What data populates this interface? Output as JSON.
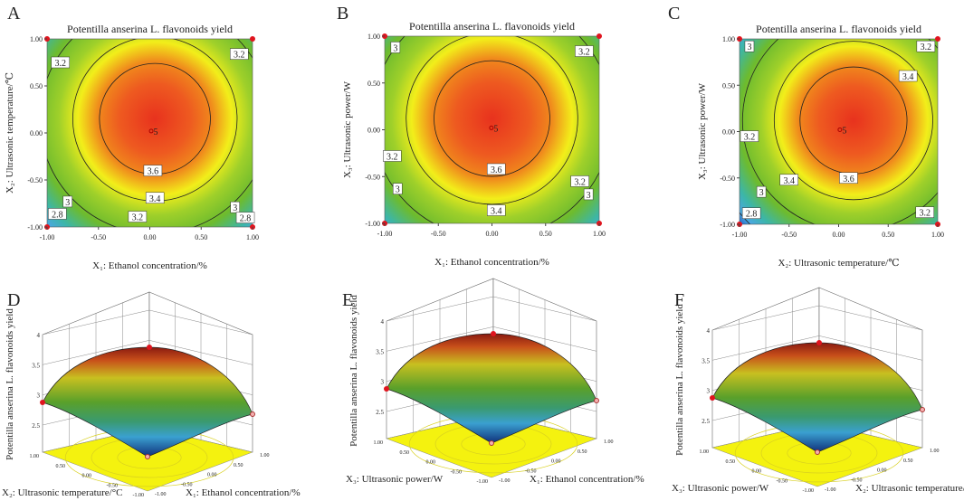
{
  "chart_data": [
    {
      "panel": "A",
      "type": "contour",
      "title": "Potentilla anserina L. flavonoids yield",
      "xlabel": "X₁: Ethanol concentration/%",
      "ylabel": "X₂: Ultrasonic temperature/℃",
      "xticks": [
        "-1.00",
        "-0.50",
        "0.00",
        "0.50",
        "1.00"
      ],
      "yticks": [
        "-1.00",
        "-0.50",
        "0.00",
        "0.50",
        "1.00"
      ],
      "xlim": [
        -1,
        1
      ],
      "ylim": [
        -1,
        1
      ],
      "center": [
        0.05,
        0.15
      ],
      "levels": [
        3.6,
        3.4,
        3.2,
        3,
        2.8
      ],
      "labels": [
        {
          "t": "3.2",
          "x": -0.87,
          "y": 0.75
        },
        {
          "t": "3.2",
          "x": 0.87,
          "y": 0.84
        },
        {
          "t": "3.6",
          "x": 0.03,
          "y": -0.4
        },
        {
          "t": "3.4",
          "x": 0.05,
          "y": -0.69
        },
        {
          "t": "3.2",
          "x": -0.12,
          "y": -0.89
        },
        {
          "t": "3",
          "x": -0.8,
          "y": -0.73
        },
        {
          "t": "2.8",
          "x": -0.9,
          "y": -0.86
        },
        {
          "t": "3",
          "x": 0.83,
          "y": -0.79
        },
        {
          "t": "2.8",
          "x": 0.93,
          "y": -0.9
        },
        {
          "t": "5",
          "x": 0.04,
          "y": 0.02
        }
      ]
    },
    {
      "panel": "B",
      "type": "contour",
      "title": "Potentilla anserina L. flavonoids yield",
      "xlabel": "X₁: Ethanol concentration/%",
      "ylabel": "X₃: Ultrasonic power/W",
      "xticks": [
        "-1.00",
        "-0.50",
        "0.00",
        "0.50",
        "1.00"
      ],
      "yticks": [
        "-1.00",
        "-0.50",
        "0.00",
        "0.50",
        "1.00"
      ],
      "xlim": [
        -1,
        1
      ],
      "ylim": [
        -1,
        1
      ],
      "center": [
        0.0,
        0.12
      ],
      "levels": [
        3.6,
        3.4,
        3.2,
        3
      ],
      "labels": [
        {
          "t": "3",
          "x": -0.9,
          "y": 0.88
        },
        {
          "t": "3.2",
          "x": 0.86,
          "y": 0.84
        },
        {
          "t": "3.2",
          "x": -0.93,
          "y": -0.28
        },
        {
          "t": "3.6",
          "x": 0.04,
          "y": -0.42
        },
        {
          "t": "3",
          "x": -0.88,
          "y": -0.63
        },
        {
          "t": "3.2",
          "x": 0.82,
          "y": -0.55
        },
        {
          "t": "3",
          "x": 0.9,
          "y": -0.69
        },
        {
          "t": "3.4",
          "x": 0.04,
          "y": -0.86
        },
        {
          "t": "5",
          "x": 0.02,
          "y": 0.02
        }
      ]
    },
    {
      "panel": "C",
      "type": "contour",
      "title": "Potentilla anserina L. flavonoids yield",
      "xlabel": "X₂: Ultrasonic temperature/℃",
      "ylabel": "X₃: Ultrasonic power/W",
      "xticks": [
        "-1.00",
        "-0.50",
        "0.00",
        "0.50",
        "1.00"
      ],
      "yticks": [
        "-1.00",
        "-0.50",
        "0.00",
        "0.50",
        "1.00"
      ],
      "xlim": [
        -1,
        1
      ],
      "ylim": [
        -1,
        1
      ],
      "center": [
        0.15,
        0.12
      ],
      "levels": [
        3.6,
        3.4,
        3.2,
        3,
        2.8
      ],
      "labels": [
        {
          "t": "3",
          "x": -0.9,
          "y": 0.92
        },
        {
          "t": "3.2",
          "x": 0.88,
          "y": 0.92
        },
        {
          "t": "3.4",
          "x": 0.7,
          "y": 0.6
        },
        {
          "t": "3.2",
          "x": -0.9,
          "y": -0.05
        },
        {
          "t": "3.4",
          "x": -0.5,
          "y": -0.52
        },
        {
          "t": "3.6",
          "x": 0.1,
          "y": -0.5
        },
        {
          "t": "3",
          "x": -0.78,
          "y": -0.65
        },
        {
          "t": "2.8",
          "x": -0.88,
          "y": -0.88
        },
        {
          "t": "3.2",
          "x": 0.87,
          "y": -0.87
        },
        {
          "t": "5",
          "x": 0.04,
          "y": 0.02
        }
      ]
    },
    {
      "panel": "D",
      "type": "surface3d",
      "zlabel": "Potentilla anserina L. flavonoids yield",
      "xlabel": "X₁: Ethanol concentration/%",
      "ylabel": "X₂: Ultrasonic temperature/°C",
      "zticks": [
        "2.5",
        "3",
        "3.5",
        "4"
      ],
      "floor_ticks": [
        "-1.00",
        "-0.50",
        "0.00",
        "0.50",
        "1.00"
      ],
      "zlim": [
        2.5,
        4
      ]
    },
    {
      "panel": "E",
      "type": "surface3d",
      "zlabel": "Potentilla anserina L. flavonoids yield",
      "xlabel": "X₁: Ethanol concentration/%",
      "ylabel": "X₃: Ultrasonic power/W",
      "zticks": [
        "2.5",
        "3",
        "3.5",
        "4"
      ],
      "floor_ticks": [
        "-1.00",
        "-0.50",
        "0.00",
        "0.50",
        "1.00"
      ],
      "zlim": [
        2.5,
        4
      ]
    },
    {
      "panel": "F",
      "type": "surface3d",
      "zlabel": "Potentilla anserina L. flavonoids yield",
      "xlabel": "X₂: Ultrasonic temperature/°C",
      "ylabel": "X₃: Ultrasonic power/W",
      "zticks": [
        "2.5",
        "3",
        "3.5",
        "4"
      ],
      "floor_ticks": [
        "-1.00",
        "-0.50",
        "0.00",
        "0.50",
        "1.00"
      ],
      "zlim": [
        2.5,
        4
      ]
    }
  ],
  "colors": {
    "red": "#e8321e",
    "orange": "#f08a1c",
    "yellow": "#f2ee1a",
    "green": "#6dbb2e",
    "teal": "#3cb6a8",
    "blue": "#1f5fc8",
    "floor": "#f4f20f",
    "point": "#e0141e"
  }
}
